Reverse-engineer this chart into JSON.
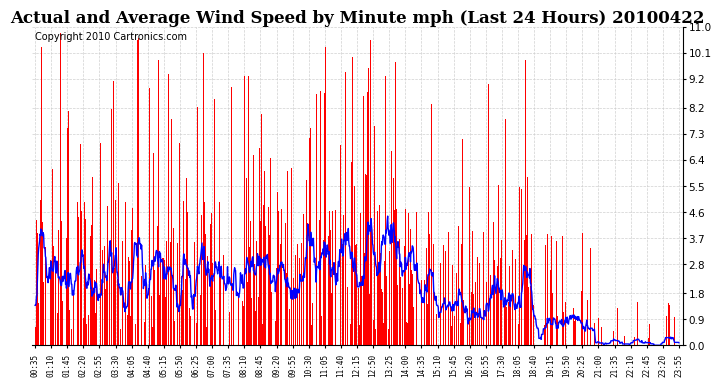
{
  "title": "Actual and Average Wind Speed by Minute mph (Last 24 Hours) 20100422",
  "copyright": "Copyright 2010 Cartronics.com",
  "yticks": [
    0.0,
    0.9,
    1.8,
    2.8,
    3.7,
    4.6,
    5.5,
    6.4,
    7.3,
    8.2,
    9.2,
    10.1,
    11.0
  ],
  "ymin": 0.0,
  "ymax": 11.0,
  "bar_color": "#ff0000",
  "line_color": "#0000ff",
  "background_color": "#ffffff",
  "grid_color": "#cccccc",
  "title_fontsize": 12,
  "copyright_fontsize": 7,
  "n_minutes": 1440,
  "seed": 99,
  "xtick_labels": [
    "00:35",
    "01:10",
    "01:45",
    "02:20",
    "02:55",
    "03:30",
    "04:05",
    "04:40",
    "05:15",
    "05:50",
    "06:25",
    "07:00",
    "07:35",
    "08:10",
    "08:45",
    "09:20",
    "09:55",
    "10:30",
    "11:05",
    "11:40",
    "12:15",
    "12:50",
    "13:25",
    "14:00",
    "14:35",
    "15:10",
    "15:45",
    "16:20",
    "16:55",
    "17:30",
    "18:05",
    "18:40",
    "19:15",
    "19:50",
    "20:25",
    "21:00",
    "21:35",
    "22:10",
    "22:45",
    "23:20",
    "23:55"
  ]
}
